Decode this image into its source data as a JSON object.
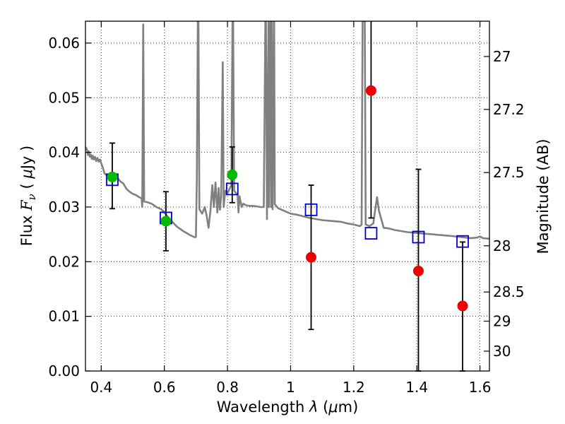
{
  "chart_data": {
    "type": "scatter",
    "xlabel": "Wavelength  λ (μm)",
    "ylabel": "Flux  F_ν  ( μJy )",
    "y2label": "Magnitude (AB)",
    "xlim": [
      0.35,
      1.63
    ],
    "ylim": [
      0.0,
      0.064
    ],
    "grid": true,
    "x_ticks": [
      {
        "value": 0.4,
        "label": "0.4"
      },
      {
        "value": 0.6,
        "label": "0.6"
      },
      {
        "value": 0.8,
        "label": "0.8"
      },
      {
        "value": 1.0,
        "label": "1"
      },
      {
        "value": 1.2,
        "label": "1.2"
      },
      {
        "value": 1.4,
        "label": "1.4"
      },
      {
        "value": 1.6,
        "label": "1.6"
      }
    ],
    "y_ticks": [
      {
        "value": 0.0,
        "label": "0.00"
      },
      {
        "value": 0.01,
        "label": "0.01"
      },
      {
        "value": 0.02,
        "label": "0.02"
      },
      {
        "value": 0.03,
        "label": "0.03"
      },
      {
        "value": 0.04,
        "label": "0.04"
      },
      {
        "value": 0.05,
        "label": "0.05"
      },
      {
        "value": 0.06,
        "label": "0.06"
      }
    ],
    "y2_ticks": [
      {
        "value": 27.0,
        "label": "27"
      },
      {
        "value": 27.2,
        "label": "27.2"
      },
      {
        "value": 27.5,
        "label": "27.5"
      },
      {
        "value": 28.0,
        "label": "28"
      },
      {
        "value": 28.5,
        "label": "28.5"
      },
      {
        "value": 29.0,
        "label": "29"
      },
      {
        "value": 30.0,
        "label": "30"
      }
    ],
    "template_spectrum": {
      "color": "#808080",
      "points": [
        [
          0.35,
          0.041
        ],
        [
          0.355,
          0.0405
        ],
        [
          0.358,
          0.0395
        ],
        [
          0.361,
          0.0402
        ],
        [
          0.364,
          0.0392
        ],
        [
          0.367,
          0.0396
        ],
        [
          0.37,
          0.0388
        ],
        [
          0.373,
          0.0394
        ],
        [
          0.376,
          0.0387
        ],
        [
          0.38,
          0.0392
        ],
        [
          0.384,
          0.0384
        ],
        [
          0.388,
          0.039
        ],
        [
          0.392,
          0.0383
        ],
        [
          0.396,
          0.0387
        ],
        [
          0.4,
          0.038
        ],
        [
          0.405,
          0.0372
        ],
        [
          0.41,
          0.0362
        ],
        [
          0.42,
          0.0356
        ],
        [
          0.43,
          0.0353
        ],
        [
          0.44,
          0.0352
        ],
        [
          0.45,
          0.0355
        ],
        [
          0.46,
          0.0347
        ],
        [
          0.47,
          0.0343
        ],
        [
          0.48,
          0.0333
        ],
        [
          0.49,
          0.0328
        ],
        [
          0.5,
          0.0324
        ],
        [
          0.51,
          0.0322
        ],
        [
          0.52,
          0.0318
        ],
        [
          0.528,
          0.0316
        ],
        [
          0.53,
          0.03
        ],
        [
          0.533,
          0.0634
        ],
        [
          0.536,
          0.031
        ],
        [
          0.545,
          0.0309
        ],
        [
          0.56,
          0.0306
        ],
        [
          0.575,
          0.03
        ],
        [
          0.59,
          0.0296
        ],
        [
          0.6,
          0.029
        ],
        [
          0.61,
          0.0283
        ],
        [
          0.62,
          0.0276
        ],
        [
          0.64,
          0.0264
        ],
        [
          0.66,
          0.0256
        ],
        [
          0.68,
          0.0249
        ],
        [
          0.695,
          0.0245
        ],
        [
          0.7,
          0.0245
        ],
        [
          0.703,
          0.035
        ],
        [
          0.706,
          0.064
        ],
        [
          0.708,
          0.064
        ],
        [
          0.711,
          0.0296
        ],
        [
          0.72,
          0.0288
        ],
        [
          0.728,
          0.03
        ],
        [
          0.734,
          0.0284
        ],
        [
          0.74,
          0.0262
        ],
        [
          0.746,
          0.0294
        ],
        [
          0.752,
          0.034
        ],
        [
          0.757,
          0.03
        ],
        [
          0.762,
          0.0345
        ],
        [
          0.768,
          0.029
        ],
        [
          0.772,
          0.0335
        ],
        [
          0.776,
          0.0295
        ],
        [
          0.78,
          0.032
        ],
        [
          0.785,
          0.0565
        ],
        [
          0.788,
          0.03
        ],
        [
          0.793,
          0.033
        ],
        [
          0.8,
          0.0325
        ],
        [
          0.812,
          0.034
        ],
        [
          0.816,
          0.064
        ],
        [
          0.818,
          0.064
        ],
        [
          0.821,
          0.033
        ],
        [
          0.832,
          0.0322
        ],
        [
          0.835,
          0.029
        ],
        [
          0.838,
          0.032
        ],
        [
          0.845,
          0.03
        ],
        [
          0.85,
          0.0306
        ],
        [
          0.86,
          0.0303
        ],
        [
          0.87,
          0.0302
        ],
        [
          0.88,
          0.0302
        ],
        [
          0.895,
          0.0301
        ],
        [
          0.905,
          0.03
        ],
        [
          0.912,
          0.03
        ],
        [
          0.915,
          0.03
        ],
        [
          0.92,
          0.064
        ],
        [
          0.922,
          0.064
        ],
        [
          0.925,
          0.0278
        ],
        [
          0.93,
          0.064
        ],
        [
          0.931,
          0.03
        ],
        [
          0.936,
          0.064
        ],
        [
          0.938,
          0.03
        ],
        [
          0.941,
          0.064
        ],
        [
          0.943,
          0.0296
        ],
        [
          0.948,
          0.064
        ],
        [
          0.95,
          0.0305
        ],
        [
          0.96,
          0.0298
        ],
        [
          0.98,
          0.0293
        ],
        [
          1.0,
          0.0288
        ],
        [
          1.02,
          0.0286
        ],
        [
          1.04,
          0.0283
        ],
        [
          1.06,
          0.028
        ],
        [
          1.08,
          0.0278
        ],
        [
          1.1,
          0.0276
        ],
        [
          1.12,
          0.0275
        ],
        [
          1.14,
          0.0274
        ],
        [
          1.16,
          0.0273
        ],
        [
          1.18,
          0.027
        ],
        [
          1.2,
          0.0268
        ],
        [
          1.22,
          0.0265
        ],
        [
          1.225,
          0.0268
        ],
        [
          1.228,
          0.064
        ],
        [
          1.235,
          0.064
        ],
        [
          1.238,
          0.0268
        ],
        [
          1.25,
          0.0265
        ],
        [
          1.262,
          0.027
        ],
        [
          1.268,
          0.0295
        ],
        [
          1.274,
          0.0318
        ],
        [
          1.28,
          0.0293
        ],
        [
          1.295,
          0.0262
        ],
        [
          1.31,
          0.0261
        ],
        [
          1.33,
          0.0258
        ],
        [
          1.35,
          0.0256
        ],
        [
          1.37,
          0.0254
        ],
        [
          1.39,
          0.0253
        ],
        [
          1.41,
          0.0252
        ],
        [
          1.43,
          0.0251
        ],
        [
          1.45,
          0.025
        ],
        [
          1.47,
          0.0249
        ],
        [
          1.49,
          0.0248
        ],
        [
          1.51,
          0.0247
        ],
        [
          1.54,
          0.0245
        ],
        [
          1.57,
          0.0243
        ],
        [
          1.59,
          0.0244
        ],
        [
          1.6,
          0.0246
        ],
        [
          1.61,
          0.0243
        ],
        [
          1.63,
          0.0242
        ]
      ]
    },
    "model_fluxes": {
      "marker": "open-square",
      "color": "#0000cc",
      "points": [
        [
          0.435,
          0.035
        ],
        [
          0.605,
          0.028
        ],
        [
          0.815,
          0.0333
        ],
        [
          1.065,
          0.0295
        ],
        [
          1.255,
          0.0252
        ],
        [
          1.405,
          0.0245
        ],
        [
          1.545,
          0.0237
        ]
      ]
    },
    "detections": {
      "marker": "filled-circle",
      "color": "#00bb00",
      "points": [
        {
          "x": 0.435,
          "y": 0.0355,
          "err_low": 0.0058,
          "err_high": 0.0062
        },
        {
          "x": 0.605,
          "y": 0.0274,
          "err_low": 0.0054,
          "err_high": 0.0054
        },
        {
          "x": 0.815,
          "y": 0.0359,
          "err_low": 0.0051,
          "err_high": 0.0051
        }
      ]
    },
    "low_significance": {
      "marker": "filled-circle",
      "color": "#ee0000",
      "points": [
        {
          "x": 1.065,
          "y": 0.0208,
          "err_low": 0.0132,
          "err_high": 0.0132
        },
        {
          "x": 1.255,
          "y": 0.0513,
          "err_low": 0.0233,
          "err_high": 0.013
        },
        {
          "x": 1.405,
          "y": 0.0183,
          "err_low": 0.0183,
          "err_high": 0.0186
        },
        {
          "x": 1.545,
          "y": 0.0119,
          "err_low": 0.0119,
          "err_high": 0.0117
        }
      ]
    }
  }
}
